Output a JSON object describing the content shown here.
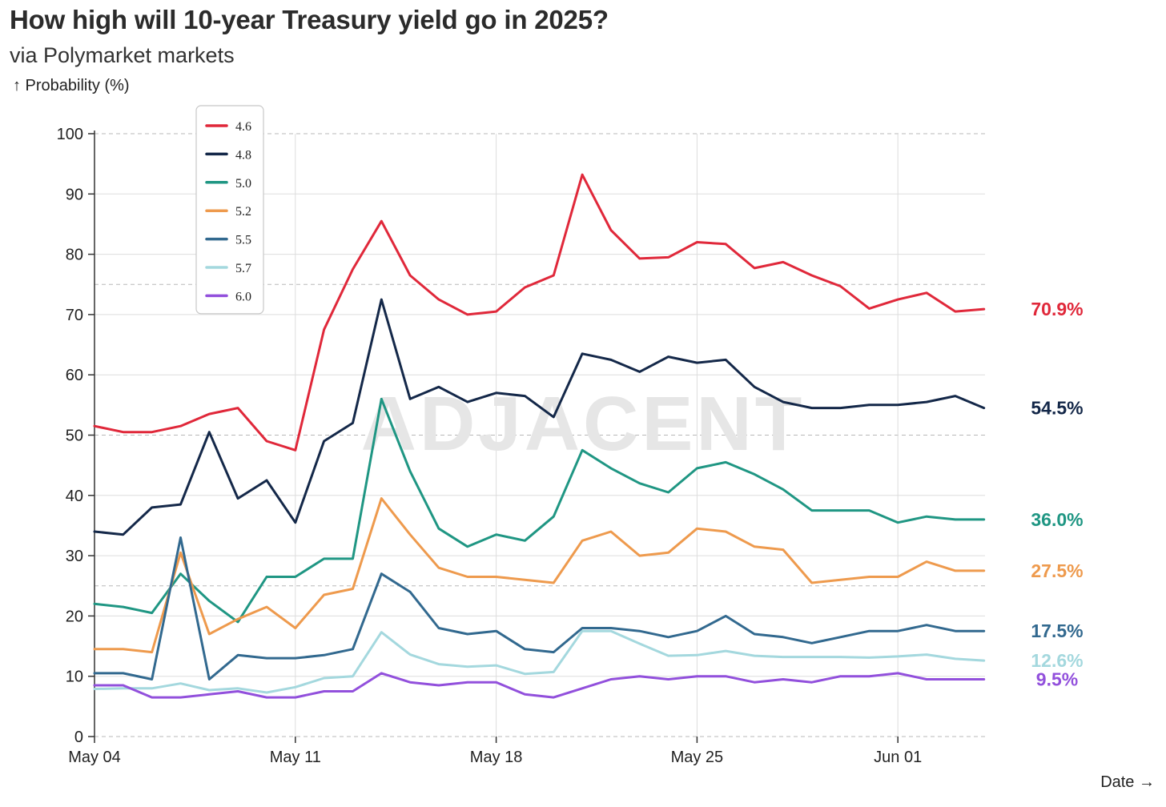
{
  "chart_data": {
    "type": "line",
    "title": "How high will 10-year Treasury yield go in 2025?",
    "subtitle": "via Polymarket markets",
    "ylabel": "↑ Probability (%)",
    "xlabel": "Date →",
    "watermark": "ADJACENT",
    "ylim": [
      0,
      100
    ],
    "y_ticks": [
      0,
      10,
      20,
      30,
      40,
      50,
      60,
      70,
      80,
      90,
      100
    ],
    "x_ticks": [
      {
        "day": 0,
        "label": "May 04"
      },
      {
        "day": 7,
        "label": "May 11"
      },
      {
        "day": 14,
        "label": "May 18"
      },
      {
        "day": 21,
        "label": "May 25"
      },
      {
        "day": 28,
        "label": "Jun 01"
      }
    ],
    "x_range": [
      0,
      31
    ],
    "x": [
      0,
      1,
      2,
      3,
      4,
      5,
      6,
      7,
      8,
      9,
      10,
      11,
      12,
      13,
      14,
      15,
      16,
      17,
      18,
      19,
      20,
      21,
      22,
      23,
      24,
      25,
      26,
      27,
      28,
      29,
      30,
      31
    ],
    "legend": [
      "4.6",
      "4.8",
      "5.0",
      "5.2",
      "5.5",
      "5.7",
      "6.0"
    ],
    "series": [
      {
        "name": "4.6",
        "color": "#e0283a",
        "end_label": "70.9%",
        "values": [
          51.5,
          50.5,
          50.5,
          51.5,
          53.5,
          54.5,
          49,
          47.5,
          67.5,
          77.5,
          85.5,
          76.5,
          72.5,
          70,
          70.5,
          74.5,
          76.5,
          93.2,
          84,
          79.3,
          79.5,
          82,
          81.7,
          77.7,
          78.7,
          76.5,
          74.7,
          71,
          72.5,
          73.6,
          70.5,
          70.9
        ]
      },
      {
        "name": "4.8",
        "color": "#142849",
        "end_label": "54.5%",
        "values": [
          34,
          33.5,
          38,
          38.5,
          50.5,
          39.5,
          42.5,
          35.5,
          49,
          52,
          72.5,
          56,
          58,
          55.5,
          57,
          56.5,
          53,
          63.5,
          62.5,
          60.5,
          63,
          62,
          62.5,
          58,
          55.5,
          54.5,
          54.5,
          55,
          55,
          55.5,
          56.5,
          54.5
        ]
      },
      {
        "name": "5.0",
        "color": "#1f9683",
        "end_label": "36.0%",
        "values": [
          22,
          21.5,
          20.5,
          27,
          22.5,
          19,
          26.5,
          26.5,
          29.5,
          29.5,
          56,
          44,
          34.5,
          31.5,
          33.5,
          32.5,
          36.5,
          47.5,
          44.5,
          42,
          40.5,
          44.5,
          45.5,
          43.5,
          41,
          37.5,
          37.5,
          37.5,
          35.5,
          36.5,
          36,
          36
        ]
      },
      {
        "name": "5.2",
        "color": "#ee9a4d",
        "end_label": "27.5%",
        "values": [
          14.5,
          14.5,
          14,
          30.5,
          17,
          19.5,
          21.5,
          18,
          23.5,
          24.5,
          39.5,
          33.5,
          28,
          26.5,
          26.5,
          26,
          25.5,
          32.5,
          34,
          30,
          30.5,
          34.5,
          34,
          31.5,
          31,
          25.5,
          26,
          26.5,
          26.5,
          29,
          27.5,
          27.5
        ]
      },
      {
        "name": "5.5",
        "color": "#32698f",
        "end_label": "17.5%",
        "values": [
          10.5,
          10.5,
          9.5,
          33,
          9.5,
          13.5,
          13,
          13,
          13.5,
          14.5,
          27,
          24,
          18,
          17,
          17.5,
          14.5,
          14,
          18,
          18,
          17.5,
          16.5,
          17.5,
          20,
          17,
          16.5,
          15.5,
          16.5,
          17.5,
          17.5,
          18.5,
          17.5,
          17.5
        ]
      },
      {
        "name": "5.7",
        "color": "#a4d8de",
        "end_label": "12.6%",
        "values": [
          7.9,
          8,
          8,
          8.8,
          7.7,
          8,
          7.3,
          8.2,
          9.7,
          10,
          17.3,
          13.6,
          12,
          11.6,
          11.8,
          10.4,
          10.7,
          17.5,
          17.5,
          15.4,
          13.4,
          13.5,
          14.2,
          13.4,
          13.2,
          13.2,
          13.2,
          13.1,
          13.3,
          13.6,
          12.9,
          12.6
        ]
      },
      {
        "name": "6.0",
        "color": "#9250dc",
        "end_label": "9.5%",
        "values": [
          8.5,
          8.5,
          6.5,
          6.5,
          7,
          7.5,
          6.5,
          6.5,
          7.5,
          7.5,
          10.5,
          9,
          8.5,
          9,
          9,
          7,
          6.5,
          8,
          9.5,
          10,
          9.5,
          10,
          10,
          9,
          9.5,
          9,
          10,
          10,
          10.5,
          9.5,
          9.5,
          9.5
        ]
      }
    ]
  }
}
